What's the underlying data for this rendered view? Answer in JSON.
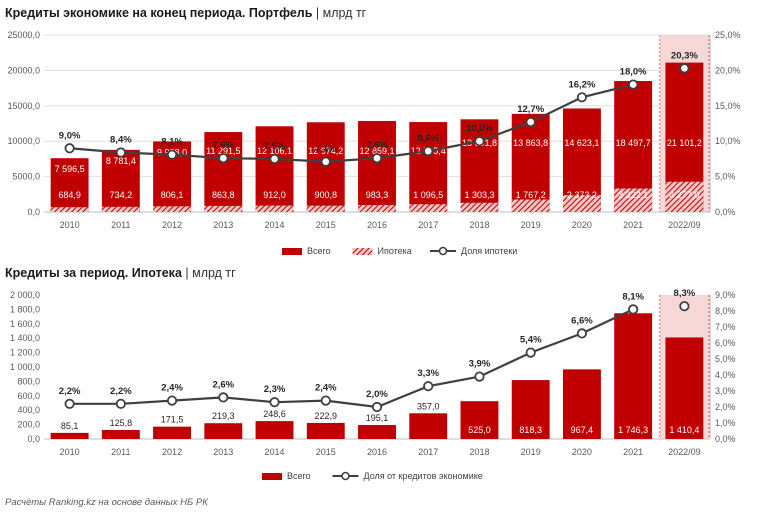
{
  "chart_data": [
    {
      "type": "bar",
      "title": "Кредиты экономике на конец периода. Портфель",
      "unit": "млрд тг",
      "categories": [
        "2010",
        "2011",
        "2012",
        "2013",
        "2014",
        "2015",
        "2016",
        "2017",
        "2018",
        "2019",
        "2020",
        "2021",
        "2022/09"
      ],
      "series": [
        {
          "name": "Всего",
          "type": "bar",
          "values": [
            7596.5,
            8781.4,
            9958.0,
            11291.5,
            12106.1,
            12674.2,
            12859.1,
            12705.4,
            13091.8,
            13863.8,
            14623.1,
            18497.7,
            21101.2
          ],
          "labels": [
            "7 596,5",
            "8 781,4",
            "9 958,0",
            "11 291,5",
            "12 106,1",
            "12 674,2",
            "12 859,1",
            "12 705,4",
            "13 091,8",
            "13 863,8",
            "14 623,1",
            "18 497,7",
            "21 101,2"
          ]
        },
        {
          "name": "Ипотека",
          "type": "bar-hatched",
          "values": [
            684.9,
            734.2,
            806.1,
            863.8,
            912.0,
            900.8,
            983.3,
            1096.5,
            1303.3,
            1767.2,
            2373.2,
            3322.1,
            4277.0
          ],
          "labels": [
            "684,9",
            "734,2",
            "806,1",
            "863,8",
            "912,0",
            "900,8",
            "983,3",
            "1 096,5",
            "1 303,3",
            "1 767,2",
            "2 373,2",
            "3 322,1",
            "4 277,0"
          ]
        },
        {
          "name": "Доля ипотеки",
          "type": "line",
          "axis": "right",
          "values": [
            9.0,
            8.4,
            8.1,
            7.6,
            7.5,
            7.1,
            7.6,
            8.6,
            10.0,
            12.7,
            16.2,
            18.0,
            20.3
          ],
          "labels": [
            "9,0%",
            "8,4%",
            "8,1%",
            "7,6%",
            "7,5%",
            "7,1%",
            "7,6%",
            "8,6%",
            "10,0%",
            "12,7%",
            "16,2%",
            "18,0%",
            "20,3%"
          ]
        }
      ],
      "left_axis": {
        "min": 0,
        "max": 25000,
        "ticks": [
          "0,0",
          "5000,0",
          "10000,0",
          "15000,0",
          "20000,0",
          "25000,0"
        ]
      },
      "right_axis": {
        "min": 0,
        "max": 25,
        "ticks": [
          "0,0%",
          "5,0%",
          "10,0%",
          "15,0%",
          "20,0%",
          "25,0%"
        ]
      },
      "highlight_last": true
    },
    {
      "type": "bar",
      "title": "Кредиты за период. Ипотека",
      "unit": "млрд тг",
      "categories": [
        "2010",
        "2011",
        "2012",
        "2013",
        "2014",
        "2015",
        "2016",
        "2017",
        "2018",
        "2019",
        "2020",
        "2021",
        "2022/09"
      ],
      "series": [
        {
          "name": "Всего",
          "type": "bar",
          "values": [
            85.1,
            125.8,
            171.5,
            219.3,
            248.6,
            222.9,
            195.1,
            357.0,
            525.0,
            818.3,
            967.4,
            1746.3,
            1410.4
          ],
          "labels": [
            "85,1",
            "125,8",
            "171,5",
            "219,3",
            "248,6",
            "222,9",
            "195,1",
            "357,0",
            "525,0",
            "818,3",
            "967,4",
            "1 746,3",
            "1 410,4"
          ]
        },
        {
          "name": "Доля от кредитов экономике",
          "type": "line",
          "axis": "right",
          "values": [
            2.2,
            2.2,
            2.4,
            2.6,
            2.3,
            2.4,
            2.0,
            3.3,
            3.9,
            5.4,
            6.6,
            8.1,
            8.3
          ],
          "labels": [
            "2,2%",
            "2,2%",
            "2,4%",
            "2,6%",
            "2,3%",
            "2,4%",
            "2,0%",
            "3,3%",
            "3,9%",
            "5,4%",
            "6,6%",
            "8,1%",
            "8,3%"
          ]
        }
      ],
      "left_axis": {
        "min": 0,
        "max": 2000,
        "ticks": [
          "0,0",
          "200,0",
          "400,0",
          "600,0",
          "800,0",
          "1 000,0",
          "1 200,0",
          "1 400,0",
          "1 600,0",
          "1 800,0",
          "2 000,0"
        ]
      },
      "right_axis": {
        "min": 0,
        "max": 9,
        "ticks": [
          "0,0%",
          "1,0%",
          "2,0%",
          "3,0%",
          "4,0%",
          "5,0%",
          "6,0%",
          "7,0%",
          "8,0%",
          "9,0%"
        ]
      },
      "highlight_last": true
    }
  ],
  "titles": {
    "chart1_bold": "Кредиты экономике на конец периода. Портфель",
    "chart1_unit": "| млрд тг",
    "chart2_bold": "Кредиты за период. Ипотека",
    "chart2_unit": "| млрд тг"
  },
  "source": "Расчёты Ranking.kz на основе данных НБ РК",
  "colors": {
    "bar": "#c00000",
    "line": "#404040",
    "marker_fill": "#ffffff",
    "highlight": "#f8d7d7",
    "grid": "#d9d9d9"
  }
}
